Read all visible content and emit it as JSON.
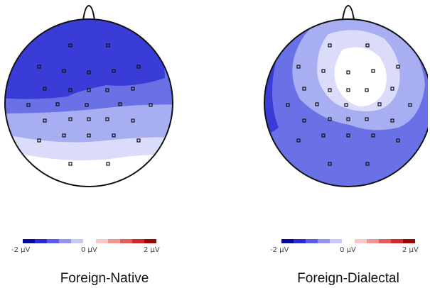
{
  "panels": [
    {
      "label": "Foreign-Native",
      "colorbar_ticks": [
        "-2 µV",
        "0 µV",
        "2 µV"
      ]
    },
    {
      "label": "Foreign-Dialectal",
      "colorbar_ticks": [
        "-2 µV",
        "0 µV",
        "2 µV"
      ]
    }
  ],
  "colorbar_colors": [
    "#08089a",
    "#2a2ad0",
    "#5c5ce6",
    "#9494f0",
    "#c8c8f8",
    "#ffffff",
    "#f8c8c8",
    "#f09494",
    "#e65c5c",
    "#d02a2a",
    "#9a0808"
  ],
  "colors": {
    "deep_blue": "#3a3cd8",
    "mid_blue": "#6a70e6",
    "light_blue": "#a8aef2",
    "pale_blue": "#dadcfa",
    "white": "#ffffff",
    "electrode": "#111111",
    "outline": "#111111"
  }
}
